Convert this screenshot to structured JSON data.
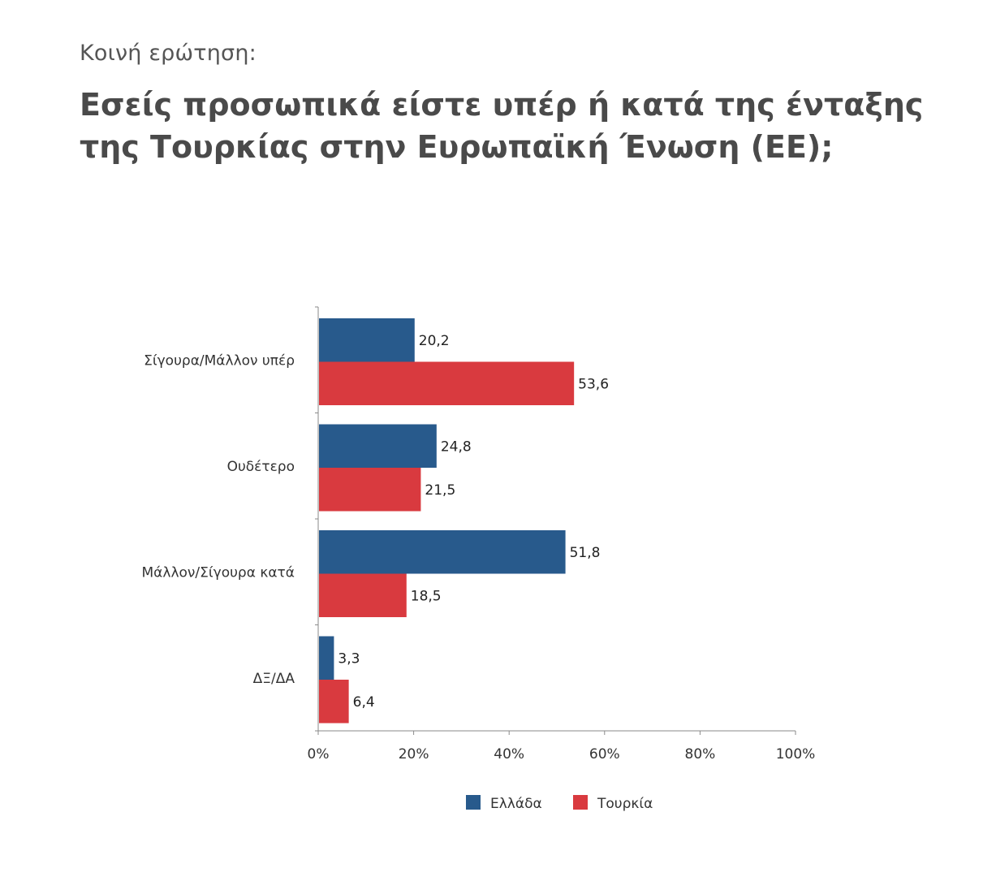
{
  "header": {
    "subtitle": "Κοινή ερώτηση:",
    "title": "Εσείς προσωπικά είστε υπέρ ή κατά της ένταξης της Τουρκίας στην Ευρωπαϊκή Ένωση (ΕΕ);"
  },
  "chart_data": {
    "type": "bar",
    "orientation": "horizontal",
    "title": "Εσείς προσωπικά είστε υπέρ ή κατά της ένταξης της Τουρκίας στην Ευρωπαϊκή Ένωση (ΕΕ);",
    "subtitle": "Κοινή ερώτηση:",
    "categories": [
      "Σίγουρα/Μάλλον υπέρ",
      "Ουδέτερο",
      "Μάλλον/Σίγουρα κατά",
      "ΔΞ/ΔΑ"
    ],
    "series": [
      {
        "name": "Ελλάδα",
        "color": "#285a8c",
        "values": [
          20.2,
          24.8,
          51.8,
          3.3
        ],
        "labels": [
          "20,2",
          "24,8",
          "51,8",
          "3,3"
        ]
      },
      {
        "name": "Τουρκία",
        "color": "#d93a3f",
        "values": [
          53.6,
          21.5,
          18.5,
          6.4
        ],
        "labels": [
          "53,6",
          "21,5",
          "18,5",
          "6,4"
        ]
      }
    ],
    "xlim": [
      0,
      100
    ],
    "xticks": [
      "0%",
      "20%",
      "40%",
      "60%",
      "80%",
      "100%"
    ],
    "xlabel": "",
    "ylabel": "",
    "grid": false,
    "legend": "bottom"
  }
}
